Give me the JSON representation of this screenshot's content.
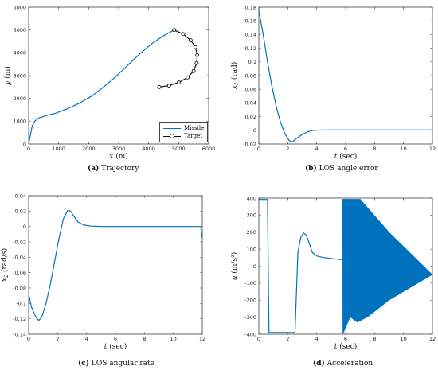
{
  "colors": {
    "blue": "#0072BD",
    "black": "#111111"
  },
  "chart_data": [
    {
      "id": "a",
      "type": "line",
      "caption_tag": "(a)",
      "caption": "Trajectory",
      "xlabel": "x",
      "xunit": "(m)",
      "ylabel": "y",
      "yunit": "(m)",
      "xlim": [
        0,
        6000
      ],
      "ylim": [
        0,
        6000
      ],
      "xticks": [
        0,
        1000,
        2000,
        3000,
        4000,
        5000,
        6000
      ],
      "yticks": [
        0,
        1000,
        2000,
        3000,
        4000,
        5000,
        6000
      ],
      "legend_position": "bottom-right",
      "series": [
        {
          "name": "Missile",
          "color": "#0072BD",
          "marker": "none",
          "x": [
            0,
            60,
            120,
            200,
            350,
            600,
            900,
            1300,
            1700,
            2100,
            2500,
            2900,
            3300,
            3700,
            4100,
            4500,
            4850
          ],
          "y": [
            0,
            400,
            800,
            1000,
            1150,
            1250,
            1350,
            1550,
            1800,
            2100,
            2500,
            2950,
            3450,
            3950,
            4400,
            4750,
            5000
          ]
        },
        {
          "name": "Target",
          "color": "#111111",
          "marker": "circle",
          "x": [
            4850,
            5150,
            5400,
            5560,
            5620,
            5600,
            5500,
            5300,
            5000,
            4680,
            4350
          ],
          "y": [
            5000,
            4820,
            4550,
            4250,
            3900,
            3550,
            3200,
            2920,
            2700,
            2560,
            2500
          ]
        }
      ]
    },
    {
      "id": "b",
      "type": "line",
      "caption_tag": "(b)",
      "caption": "LOS angle error",
      "xlabel": "t",
      "xunit": "(sec)",
      "ylabel": "x1",
      "yunit": "(rad)",
      "xlim": [
        0,
        12
      ],
      "ylim": [
        -0.02,
        0.18
      ],
      "xticks": [
        0,
        2,
        4,
        6,
        8,
        10,
        12
      ],
      "yticks": [
        -0.02,
        0,
        0.02,
        0.04,
        0.06,
        0.08,
        0.1,
        0.12,
        0.14,
        0.16,
        0.18
      ],
      "series": [
        {
          "color": "#0072BD",
          "x": [
            0,
            0.3,
            0.6,
            0.9,
            1.2,
            1.5,
            1.8,
            2.1,
            2.3,
            2.6,
            3.0,
            3.4,
            3.8,
            4.5,
            6,
            8,
            10,
            12
          ],
          "y": [
            0.175,
            0.14,
            0.1,
            0.065,
            0.035,
            0.012,
            -0.005,
            -0.015,
            -0.017,
            -0.012,
            -0.006,
            -0.002,
            0,
            0.0005,
            0.0005,
            0.0005,
            0.0005,
            0.0005
          ]
        }
      ]
    },
    {
      "id": "c",
      "type": "line",
      "caption_tag": "(c)",
      "caption": "LOS angular rate",
      "xlabel": "t",
      "xunit": "(sec)",
      "ylabel": "x2",
      "yunit": "(rad/s)",
      "xlim": [
        0,
        12
      ],
      "ylim": [
        -0.14,
        0.04
      ],
      "xticks": [
        0,
        2,
        4,
        6,
        8,
        10,
        12
      ],
      "yticks": [
        -0.14,
        -0.12,
        -0.1,
        -0.08,
        -0.06,
        -0.04,
        -0.02,
        0,
        0.02,
        0.04
      ],
      "series": [
        {
          "color": "#0072BD",
          "x": [
            0,
            0.2,
            0.5,
            0.7,
            0.9,
            1.2,
            1.5,
            1.8,
            2.1,
            2.4,
            2.7,
            2.9,
            3.1,
            3.4,
            3.8,
            4.3,
            5,
            6,
            8,
            10,
            11.9,
            11.95,
            12
          ],
          "y": [
            -0.088,
            -0.105,
            -0.118,
            -0.122,
            -0.118,
            -0.1,
            -0.075,
            -0.045,
            -0.015,
            0.01,
            0.021,
            0.02,
            0.014,
            0.006,
            0.002,
            0.0005,
            0,
            0,
            0,
            0,
            0,
            -0.012,
            -0.015
          ]
        }
      ]
    },
    {
      "id": "d",
      "type": "line",
      "caption_tag": "(d)",
      "caption": "Acceleration",
      "xlabel": "t",
      "xunit": "(sec)",
      "ylabel": "u",
      "yunit": "(m/s²)",
      "xlim": [
        0,
        12
      ],
      "ylim": [
        -400,
        400
      ],
      "xticks": [
        0,
        2,
        4,
        6,
        8,
        10,
        12
      ],
      "yticks": [
        -400,
        -300,
        -200,
        -100,
        0,
        100,
        200,
        300,
        400
      ],
      "series": [
        {
          "color": "#0072BD",
          "x": [
            0,
            0.5,
            0.6,
            0.7,
            2.4,
            2.5,
            2.7,
            2.9,
            3.1,
            3.3,
            3.5,
            3.7,
            4.0,
            4.5,
            5.0,
            5.5,
            5.8
          ],
          "y": [
            392,
            392,
            392,
            -390,
            -390,
            -390,
            80,
            170,
            195,
            180,
            130,
            80,
            60,
            50,
            45,
            40,
            38
          ]
        }
      ],
      "oscillation": {
        "t_start": 5.8,
        "t_end": 12,
        "upper_t": [
          5.8,
          6.3,
          7,
          9,
          12
        ],
        "upper_v": [
          395,
          395,
          395,
          200,
          -50
        ],
        "lower_t": [
          5.8,
          6.3,
          6.8,
          7.5,
          9,
          12
        ],
        "lower_v": [
          -400,
          -300,
          -330,
          -300,
          -200,
          -50
        ]
      }
    }
  ]
}
